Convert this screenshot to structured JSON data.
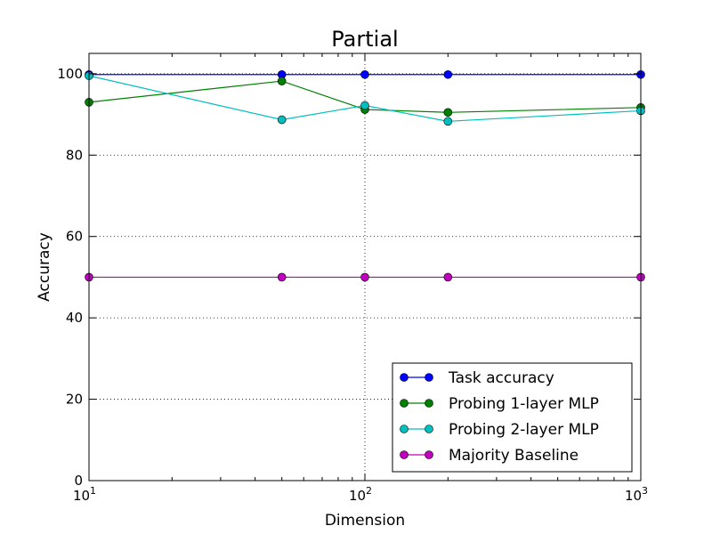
{
  "chart_data": {
    "type": "line",
    "title": "Partial",
    "xlabel": "Dimension",
    "ylabel": "Accuracy",
    "xscale": "log",
    "xlim": [
      10,
      1000
    ],
    "ylim": [
      0,
      105
    ],
    "grid": true,
    "legend_position": "lower-right",
    "x": [
      10,
      50,
      100,
      200,
      1000
    ],
    "x_ticks": [
      {
        "value": 10,
        "base": "10",
        "exp": "1"
      },
      {
        "value": 100,
        "base": "10",
        "exp": "2"
      },
      {
        "value": 1000,
        "base": "10",
        "exp": "3"
      }
    ],
    "y_ticks": [
      0,
      20,
      40,
      60,
      80,
      100
    ],
    "series": [
      {
        "name": "Task accuracy",
        "color": "#0000ff",
        "values": [
          99.8,
          99.8,
          99.8,
          99.8,
          99.8
        ]
      },
      {
        "name": "Probing 1-layer MLP",
        "color": "#008000",
        "values": [
          93.0,
          98.2,
          91.2,
          90.5,
          91.7
        ]
      },
      {
        "name": "Probing 2-layer MLP",
        "color": "#00bfbf",
        "values": [
          99.5,
          88.7,
          92.2,
          88.3,
          90.9
        ]
      },
      {
        "name": "Majority Baseline",
        "color": "#bf00bf",
        "values": [
          50,
          50,
          50,
          50,
          50
        ]
      }
    ]
  }
}
